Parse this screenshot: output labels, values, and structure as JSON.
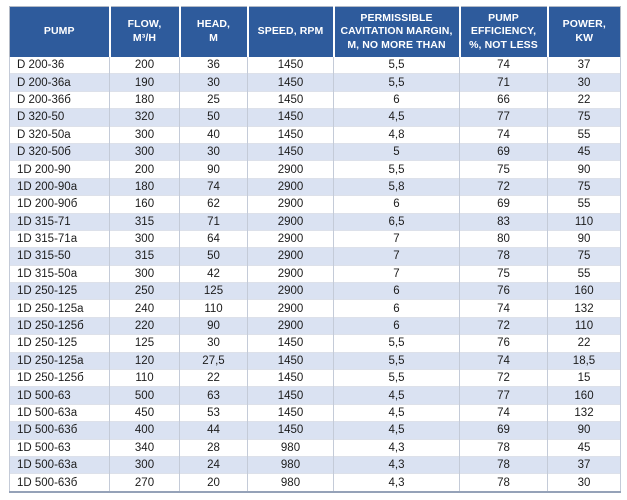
{
  "colors": {
    "header_background": "#2e5b9c",
    "header_text": "#ffffff",
    "row_stripe": "#dae2f2",
    "row_plain": "#ffffff",
    "grid_line": "#c4cbd8",
    "body_text": "#1c1c1c"
  },
  "table": {
    "columns": [
      "PUMP",
      "FLOW,\nM³/H",
      "HEAD,\nM",
      "SPEED, RPM",
      "PERMISSIBLE\nCAVITATION MARGIN,\nM, NO MORE THAN",
      "PUMP\nEFFICIENCY,\n%, NOT LESS",
      "POWER,\nKW"
    ],
    "rows": [
      [
        "D 200-36",
        "200",
        "36",
        "1450",
        "5,5",
        "74",
        "37"
      ],
      [
        "D 200-36a",
        "190",
        "30",
        "1450",
        "5,5",
        "71",
        "30"
      ],
      [
        "D 200-36б",
        "180",
        "25",
        "1450",
        "6",
        "66",
        "22"
      ],
      [
        "D 320-50",
        "320",
        "50",
        "1450",
        "4,5",
        "77",
        "75"
      ],
      [
        "D 320-50a",
        "300",
        "40",
        "1450",
        "4,8",
        "74",
        "55"
      ],
      [
        "D 320-50б",
        "300",
        "30",
        "1450",
        "5",
        "69",
        "45"
      ],
      [
        "1D 200-90",
        "200",
        "90",
        "2900",
        "5,5",
        "75",
        "90"
      ],
      [
        "1D 200-90a",
        "180",
        "74",
        "2900",
        "5,8",
        "72",
        "75"
      ],
      [
        "1D 200-90б",
        "160",
        "62",
        "2900",
        "6",
        "69",
        "55"
      ],
      [
        "1D 315-71",
        "315",
        "71",
        "2900",
        "6,5",
        "83",
        "110"
      ],
      [
        "1D 315-71a",
        "300",
        "64",
        "2900",
        "7",
        "80",
        "90"
      ],
      [
        "1D 315-50",
        "315",
        "50",
        "2900",
        "7",
        "78",
        "75"
      ],
      [
        "1D 315-50a",
        "300",
        "42",
        "2900",
        "7",
        "75",
        "55"
      ],
      [
        "1D 250-125",
        "250",
        "125",
        "2900",
        "6",
        "76",
        "160"
      ],
      [
        "1D 250-125a",
        "240",
        "110",
        "2900",
        "6",
        "74",
        "132"
      ],
      [
        "1D 250-125б",
        "220",
        "90",
        "2900",
        "6",
        "72",
        "110"
      ],
      [
        "1D 250-125",
        "125",
        "30",
        "1450",
        "5,5",
        "76",
        "22"
      ],
      [
        "1D 250-125a",
        "120",
        "27,5",
        "1450",
        "5,5",
        "74",
        "18,5"
      ],
      [
        "1D 250-125б",
        "110",
        "22",
        "1450",
        "5,5",
        "72",
        "15"
      ],
      [
        "1D 500-63",
        "500",
        "63",
        "1450",
        "4,5",
        "77",
        "160"
      ],
      [
        "1D 500-63a",
        "450",
        "53",
        "1450",
        "4,5",
        "74",
        "132"
      ],
      [
        "1D 500-63б",
        "400",
        "44",
        "1450",
        "4,5",
        "69",
        "90"
      ],
      [
        "1D 500-63",
        "340",
        "28",
        "980",
        "4,3",
        "78",
        "45"
      ],
      [
        "1D 500-63a",
        "300",
        "24",
        "980",
        "4,3",
        "78",
        "37"
      ],
      [
        "1D 500-63б",
        "270",
        "20",
        "980",
        "4,3",
        "78",
        "30"
      ]
    ]
  }
}
